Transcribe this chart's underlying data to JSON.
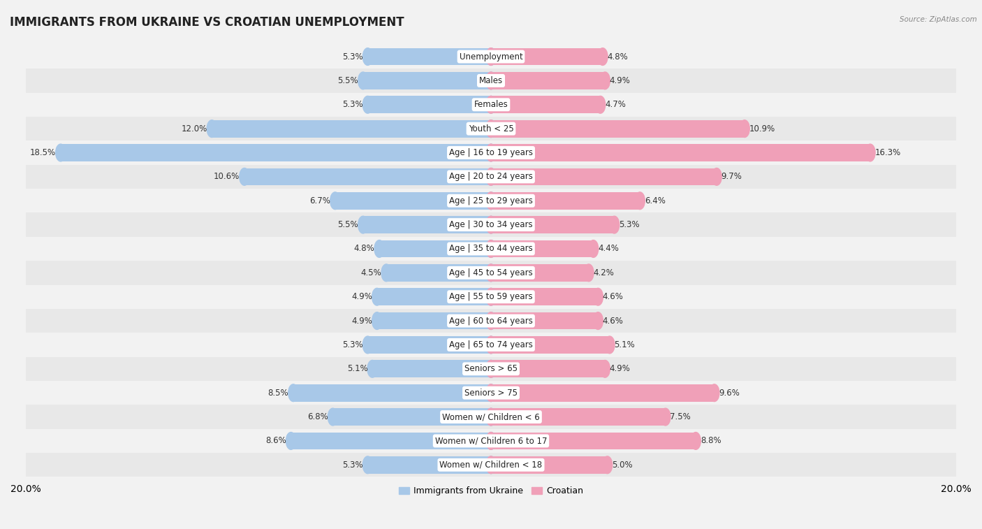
{
  "title": "IMMIGRANTS FROM UKRAINE VS CROATIAN UNEMPLOYMENT",
  "source": "Source: ZipAtlas.com",
  "categories": [
    "Unemployment",
    "Males",
    "Females",
    "Youth < 25",
    "Age | 16 to 19 years",
    "Age | 20 to 24 years",
    "Age | 25 to 29 years",
    "Age | 30 to 34 years",
    "Age | 35 to 44 years",
    "Age | 45 to 54 years",
    "Age | 55 to 59 years",
    "Age | 60 to 64 years",
    "Age | 65 to 74 years",
    "Seniors > 65",
    "Seniors > 75",
    "Women w/ Children < 6",
    "Women w/ Children 6 to 17",
    "Women w/ Children < 18"
  ],
  "ukraine_values": [
    5.3,
    5.5,
    5.3,
    12.0,
    18.5,
    10.6,
    6.7,
    5.5,
    4.8,
    4.5,
    4.9,
    4.9,
    5.3,
    5.1,
    8.5,
    6.8,
    8.6,
    5.3
  ],
  "croatian_values": [
    4.8,
    4.9,
    4.7,
    10.9,
    16.3,
    9.7,
    6.4,
    5.3,
    4.4,
    4.2,
    4.6,
    4.6,
    5.1,
    4.9,
    9.6,
    7.5,
    8.8,
    5.0
  ],
  "ukraine_color": "#a8c8e8",
  "croatian_color": "#f0a0b8",
  "ukraine_label": "Immigrants from Ukraine",
  "croatian_label": "Croatian",
  "xlim": 20.0,
  "row_colors": [
    "#f2f2f2",
    "#e8e8e8"
  ],
  "title_fontsize": 12,
  "label_fontsize": 8.5,
  "tick_fontsize": 9,
  "value_fontsize": 8.5,
  "legend_fontsize": 9,
  "bar_height": 0.72
}
